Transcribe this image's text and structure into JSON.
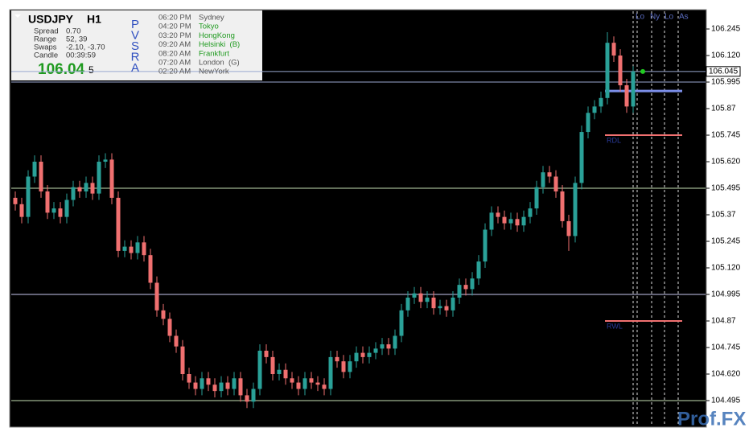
{
  "chart_data": {
    "type": "candlestick",
    "bull_color": "#2aa198",
    "bear_color": "#f07070",
    "open": [
      105.45,
      105.42,
      105.36,
      105.55,
      105.62,
      105.48,
      105.38,
      105.4,
      105.36,
      105.44,
      105.5,
      105.48,
      105.52,
      105.47,
      105.62,
      105.63,
      105.45,
      105.2,
      105.22,
      105.19,
      105.24,
      105.18,
      105.05,
      104.92,
      104.88,
      104.8,
      104.75,
      104.62,
      104.58,
      104.55,
      104.6,
      104.57,
      104.54,
      104.58,
      104.55,
      104.6,
      104.52,
      104.49,
      104.55,
      104.73,
      104.7,
      104.62,
      104.64,
      104.6,
      104.58,
      104.55,
      104.6,
      104.58,
      104.57,
      104.55,
      104.7,
      104.68,
      104.63,
      104.68,
      104.72,
      104.7,
      104.72,
      104.74,
      104.76,
      104.74,
      104.8,
      104.92,
      104.98,
      105.0,
      104.96,
      104.98,
      104.93,
      104.94,
      104.92,
      104.98,
      105.04,
      105.02,
      105.07,
      105.15,
      105.3,
      105.38,
      105.36,
      105.33,
      105.35,
      105.32,
      105.36,
      105.4,
      105.5,
      105.57,
      105.55,
      105.48,
      105.34,
      105.27,
      105.52,
      105.76,
      105.85,
      105.88,
      105.92,
      106.18,
      106.12,
      105.98,
      105.88
    ],
    "high": [
      105.48,
      105.45,
      105.58,
      105.65,
      105.65,
      105.51,
      105.43,
      105.43,
      105.47,
      105.53,
      105.53,
      105.55,
      105.55,
      105.65,
      105.66,
      105.66,
      105.48,
      105.25,
      105.25,
      105.27,
      105.27,
      105.21,
      105.08,
      104.95,
      104.91,
      104.83,
      104.78,
      104.65,
      104.61,
      104.63,
      104.63,
      104.6,
      104.61,
      104.61,
      104.63,
      104.63,
      104.55,
      104.58,
      104.76,
      104.76,
      104.73,
      104.67,
      104.67,
      104.63,
      104.61,
      104.63,
      104.63,
      104.61,
      104.6,
      104.73,
      104.73,
      104.71,
      104.71,
      104.75,
      104.75,
      104.75,
      104.77,
      104.79,
      104.79,
      104.83,
      104.95,
      105.01,
      105.03,
      105.03,
      105.01,
      105.01,
      104.97,
      104.97,
      105.01,
      105.07,
      105.07,
      105.1,
      105.18,
      105.33,
      105.41,
      105.41,
      105.39,
      105.38,
      105.38,
      105.39,
      105.43,
      105.53,
      105.6,
      105.6,
      105.58,
      105.51,
      105.37,
      105.55,
      105.79,
      105.88,
      105.91,
      105.95,
      106.23,
      106.21,
      106.15,
      106.01,
      106.07
    ],
    "low": [
      105.39,
      105.33,
      105.33,
      105.52,
      105.45,
      105.35,
      105.35,
      105.33,
      105.33,
      105.41,
      105.45,
      105.45,
      105.44,
      105.44,
      105.59,
      105.42,
      105.17,
      105.17,
      105.16,
      105.16,
      105.15,
      105.02,
      104.89,
      104.85,
      104.77,
      104.72,
      104.59,
      104.55,
      104.52,
      104.52,
      104.54,
      104.51,
      104.51,
      104.52,
      104.52,
      104.49,
      104.46,
      104.46,
      104.52,
      104.67,
      104.59,
      104.59,
      104.57,
      104.55,
      104.52,
      104.52,
      104.55,
      104.54,
      104.52,
      104.52,
      104.65,
      104.6,
      104.6,
      104.65,
      104.67,
      104.67,
      104.69,
      104.71,
      104.71,
      104.71,
      104.77,
      104.89,
      104.95,
      104.93,
      104.93,
      104.9,
      104.9,
      104.89,
      104.89,
      104.95,
      104.99,
      104.99,
      105.04,
      105.12,
      105.27,
      105.33,
      105.3,
      105.3,
      105.29,
      105.29,
      105.33,
      105.37,
      105.47,
      105.52,
      105.45,
      105.31,
      105.2,
      105.24,
      105.49,
      105.73,
      105.82,
      105.85,
      105.89,
      106.09,
      105.95,
      105.85,
      105.85
    ],
    "close": [
      105.42,
      105.36,
      105.55,
      105.62,
      105.48,
      105.38,
      105.4,
      105.36,
      105.44,
      105.5,
      105.48,
      105.52,
      105.47,
      105.62,
      105.63,
      105.45,
      105.2,
      105.22,
      105.19,
      105.24,
      105.18,
      105.05,
      104.92,
      104.88,
      104.8,
      104.75,
      104.62,
      104.58,
      104.55,
      104.6,
      104.57,
      104.54,
      104.58,
      104.55,
      104.6,
      104.52,
      104.49,
      104.55,
      104.73,
      104.7,
      104.62,
      104.64,
      104.6,
      104.58,
      104.55,
      104.6,
      104.58,
      104.57,
      104.55,
      104.7,
      104.68,
      104.63,
      104.68,
      104.72,
      104.7,
      104.72,
      104.74,
      104.76,
      104.74,
      104.8,
      104.92,
      104.98,
      105.0,
      104.96,
      104.98,
      104.93,
      104.94,
      104.92,
      104.98,
      105.04,
      105.02,
      105.07,
      105.15,
      105.3,
      105.38,
      105.36,
      105.33,
      105.35,
      105.32,
      105.36,
      105.4,
      105.5,
      105.57,
      105.55,
      105.48,
      105.34,
      105.27,
      105.52,
      105.76,
      105.85,
      105.88,
      105.92,
      106.18,
      106.12,
      105.98,
      105.88,
      106.045
    ],
    "ylim": [
      104.37,
      106.336
    ],
    "yticks": [
      104.495,
      {
        "value": 104.62,
        "label": "104.620"
      },
      104.745,
      104.87,
      104.995,
      {
        "value": 105.12,
        "label": "105.120"
      },
      105.245,
      105.37,
      105.495,
      {
        "value": 105.62,
        "label": "105.620"
      },
      105.745,
      105.87,
      105.995,
      {
        "value": 106.12,
        "label": "106.120"
      },
      106.245
    ],
    "current_price": 106.045,
    "hlines": [
      {
        "value": 106.045,
        "color": "#9aa8d0"
      },
      {
        "value": 105.995,
        "color": "#9aa8d0"
      },
      {
        "value": 105.495,
        "color": "#c6e0b4"
      },
      {
        "value": 104.995,
        "color": "#c8c8f0"
      },
      {
        "value": 104.495,
        "color": "#c6e0b4"
      }
    ],
    "levels": [
      {
        "label": "RDL",
        "value": 105.745,
        "color": "#f07070"
      },
      {
        "label": "RWL",
        "value": 104.87,
        "color": "#f07070"
      },
      {
        "value": 105.953,
        "color": "#7b8ee8"
      }
    ],
    "session_markers": [
      "Lo",
      "Ny",
      "Lo",
      "As"
    ]
  },
  "info_panel": {
    "symbol": "USDJPY",
    "timeframe": "H1",
    "rows": [
      [
        "Spread",
        "0.70"
      ],
      [
        "Range",
        "52, 39"
      ],
      [
        "Swaps",
        "-2.10, -3.70"
      ],
      [
        "Candle",
        "00:39:59"
      ]
    ],
    "price": "106.04",
    "price_last_digit": "5",
    "pvsra": [
      "P",
      "V",
      "S",
      "R",
      "A"
    ],
    "sessions": [
      {
        "time": "06:20 PM",
        "name": "Sydney",
        "color": "#555555"
      },
      {
        "time": "04:20 PM",
        "name": "Tokyo",
        "color": "#1f9a1f"
      },
      {
        "time": "03:20 PM",
        "name": "HongKong",
        "color": "#1f9a1f"
      },
      {
        "time": "09:20 AM",
        "name": "Helsinki  (B)",
        "color": "#1f9a1f"
      },
      {
        "time": "08:20 AM",
        "name": "Frankfurt",
        "color": "#1f9a1f"
      },
      {
        "time": "07:20 AM",
        "name": "London  (G)",
        "color": "#555555"
      },
      {
        "time": "02:20 AM",
        "name": "NewYork",
        "color": "#555555"
      }
    ]
  },
  "watermark": "Prof.FX"
}
